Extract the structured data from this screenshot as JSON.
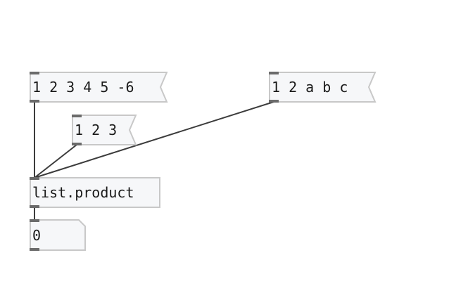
{
  "patch": {
    "messages": [
      {
        "id": "msg-a",
        "text": "1 2 3 4 5 -6"
      },
      {
        "id": "msg-b",
        "text": "1 2 3"
      },
      {
        "id": "msg-c",
        "text": "1 2 a b c"
      }
    ],
    "object": {
      "text": "list.product"
    },
    "number": {
      "value": "0"
    }
  },
  "colors": {
    "box_fill": "#f6f7f9",
    "box_border": "#c8c8c8",
    "port": "#6b6b6b",
    "cord": "#3c3c3c",
    "text": "#1a1a1a"
  }
}
